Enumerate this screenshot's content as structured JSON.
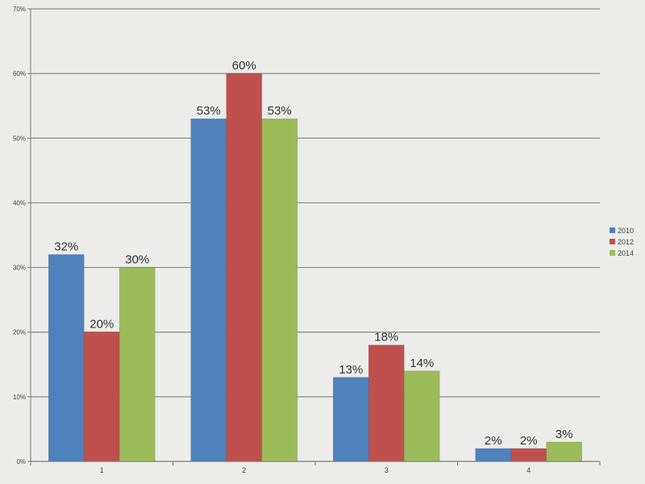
{
  "chart_data": {
    "type": "bar",
    "categories": [
      "1",
      "2",
      "3",
      "4"
    ],
    "series": [
      {
        "name": "2010",
        "color": "#4f81bd",
        "values": [
          32,
          53,
          13,
          2
        ],
        "labels": [
          "32%",
          "53%",
          "13%",
          "2%"
        ]
      },
      {
        "name": "2012",
        "color": "#c0504d",
        "values": [
          20,
          60,
          18,
          2
        ],
        "labels": [
          "20%",
          "60%",
          "18%",
          "2%"
        ]
      },
      {
        "name": "2014",
        "color": "#9bbb59",
        "values": [
          30,
          53,
          14,
          3
        ],
        "labels": [
          "30%",
          "53%",
          "14%",
          "3%"
        ]
      }
    ],
    "y_ticks": [
      {
        "value": 0,
        "label": "0%"
      },
      {
        "value": 10,
        "label": "10%"
      },
      {
        "value": 20,
        "label": "20%"
      },
      {
        "value": 30,
        "label": "30%"
      },
      {
        "value": 40,
        "label": "40%"
      },
      {
        "value": 50,
        "label": "50%"
      },
      {
        "value": 60,
        "label": "60%"
      },
      {
        "value": 70,
        "label": "70%"
      }
    ],
    "ylim": [
      0,
      70
    ],
    "title": "",
    "xlabel": "",
    "ylabel": "",
    "grid": true,
    "legend_position": "right"
  }
}
